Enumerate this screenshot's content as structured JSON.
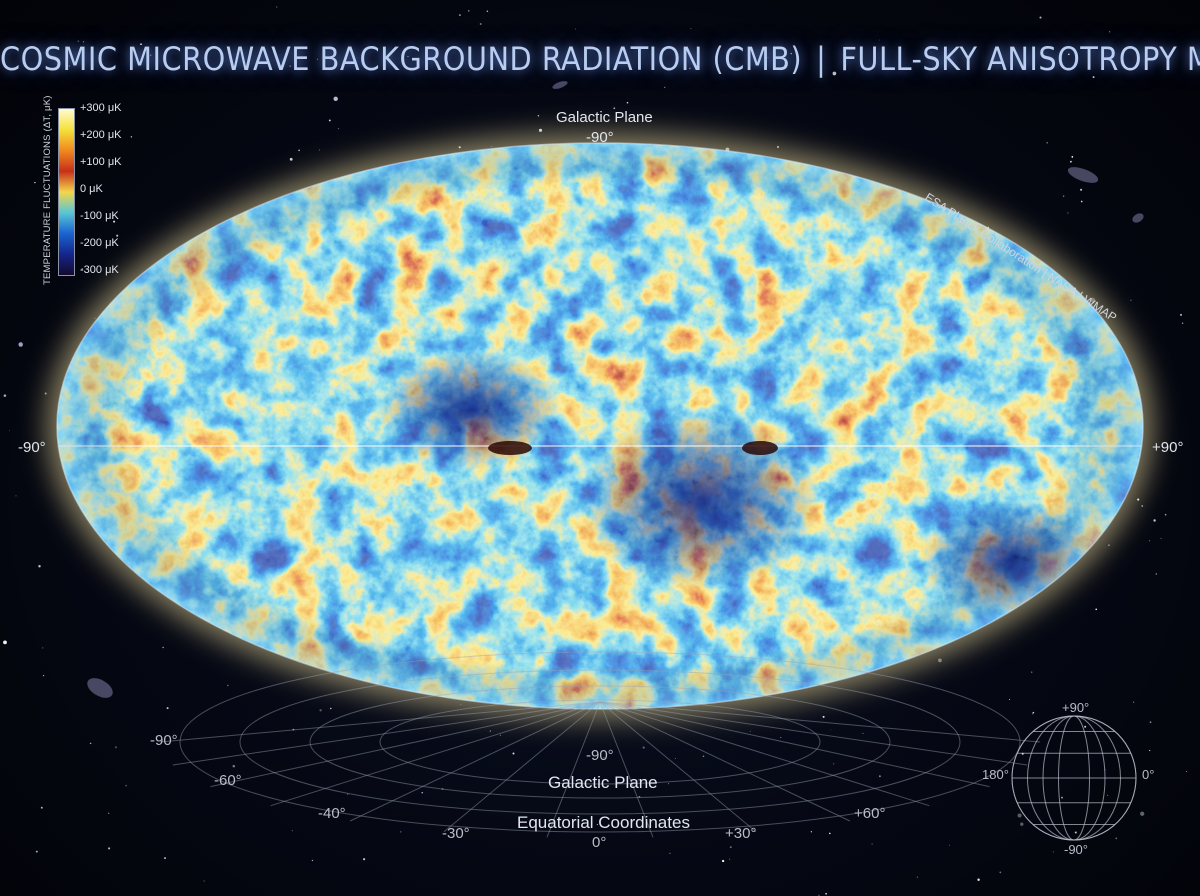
{
  "title": {
    "main": "COSMIC MICROWAVE BACKGROUND RADIATION (CMB)",
    "separator": "|",
    "sub": "FULL-SKY ANISOTROPY MAP"
  },
  "colorbar": {
    "title": "TEMPERATURE FLUCTUATIONS (ΔT, μK)",
    "ticks": [
      "+300 μK",
      "+200 μK",
      "+100 μK",
      "0 μK",
      "-100 μK",
      "-200 μK",
      "-300 μK"
    ],
    "colors": [
      "#fffbd0",
      "#f5e13a",
      "#f08a1e",
      "#c8301a",
      "#f3d64a",
      "#58c6d6",
      "#1a64d0",
      "#15258a",
      "#150a30"
    ]
  },
  "map": {
    "top_label": "Galactic Plane",
    "top_value": "-90°",
    "left_value": "-90°",
    "right_value": "+90°",
    "credit": "ESA Planck Collaboration | NASA | WMAP"
  },
  "grid": {
    "lower": {
      "left_value": "-90°",
      "center_value": "-90°",
      "plane_label": "Galactic Plane",
      "coord_label": "Equatorial Coordinates",
      "bottom_value": "0°",
      "ticks": [
        "-60°",
        "-40°",
        "-30°",
        "+30°",
        "+60°"
      ]
    }
  },
  "globe": {
    "top": "+90°",
    "bottom": "-90°",
    "left": "180°",
    "right": "0°"
  },
  "palette": {
    "dark_blue": "#15258a",
    "blue": "#1f6bd6",
    "cyan": "#4fc4dc",
    "yellow": "#f4d84a",
    "orange": "#ef8a22",
    "red": "#c42a18",
    "dark_red": "#5a0f0a"
  }
}
